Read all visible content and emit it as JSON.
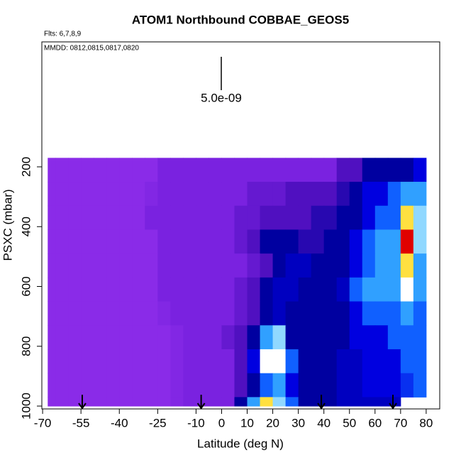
{
  "chart_data": {
    "type": "heatmap",
    "title": "ATOM1 Northbound COBBAE_GEOS5",
    "subtitle": "Flts: 6,7,8,9",
    "annotation": "MMDD: 0812,0815,0817,0820",
    "scale_label": "5.0e-09",
    "x_label": "Latitude (deg N)",
    "y_label": "PSXC (mbar)",
    "xlim": [
      -70.3,
      85.3
    ],
    "ylim": [
      1009.5,
      -217.8
    ],
    "xticks": [
      -70,
      -55,
      -40,
      -25,
      -10,
      0,
      10,
      20,
      30,
      40,
      50,
      60,
      70,
      80
    ],
    "yticks": [
      200,
      400,
      600,
      800,
      1000
    ],
    "x_edges": [
      -68,
      -65,
      -60,
      -55,
      -50,
      -45,
      -40,
      -35,
      -30,
      -25,
      -20,
      -15,
      -10,
      -5,
      0,
      5,
      10,
      15,
      20,
      25,
      30,
      35,
      40,
      45,
      50,
      55,
      60,
      65,
      70,
      75,
      80
    ],
    "y_edges": [
      170,
      250,
      330,
      410,
      490,
      570,
      650,
      730,
      810,
      890,
      970,
      1000
    ],
    "zlim": [
      0,
      10
    ],
    "colormap": [
      "#8a2be8",
      "#7a22e0",
      "#5010c0",
      "#0000a0",
      "#0000e0",
      "#1060ff",
      "#30a0ff",
      "#90d8ff",
      "#ffffff",
      "#ffe040",
      "#e00000"
    ],
    "z": [
      [
        0,
        0,
        0,
        0,
        0,
        0,
        0,
        0,
        0,
        1,
        1,
        1,
        1,
        1,
        1,
        1,
        1,
        1,
        1,
        1,
        1,
        1,
        1,
        2,
        2,
        3,
        3,
        3,
        3,
        4
      ],
      [
        0,
        0,
        0,
        0,
        0,
        0,
        0,
        0,
        0.5,
        1,
        1,
        1,
        1,
        1,
        1,
        1,
        1.5,
        1.5,
        1.5,
        2,
        2,
        2,
        2,
        2.5,
        3,
        4,
        4,
        5,
        6,
        6
      ],
      [
        0,
        0,
        0,
        0,
        0,
        0,
        0,
        0,
        1,
        1,
        1,
        1,
        1,
        1,
        1,
        1.5,
        1.5,
        2,
        2,
        2,
        2,
        2.5,
        2.5,
        3,
        3,
        4,
        5,
        5,
        9,
        7
      ],
      [
        0,
        0,
        0,
        0,
        0,
        0,
        0,
        0,
        0,
        1,
        1,
        1,
        1,
        1,
        1,
        1.5,
        2,
        3,
        3,
        3,
        2.5,
        2.5,
        3,
        3,
        4,
        5,
        6,
        6,
        10,
        7
      ],
      [
        0,
        0,
        0,
        0,
        0,
        0,
        0,
        0,
        0,
        1,
        1,
        1,
        1,
        1,
        1,
        1,
        1.5,
        2,
        3,
        3.5,
        3.5,
        3,
        3,
        3,
        4,
        5,
        6,
        6,
        9,
        6
      ],
      [
        0,
        0,
        0,
        0,
        0,
        0,
        0,
        0,
        0,
        1,
        1,
        1,
        1,
        1,
        1,
        1.5,
        2,
        3,
        3.5,
        3.5,
        3,
        3,
        3,
        3.5,
        5,
        6,
        6,
        6,
        8,
        6
      ],
      [
        0,
        0,
        0,
        0,
        0,
        0,
        0,
        0,
        0,
        0.5,
        1,
        1,
        1,
        1,
        1,
        1.5,
        2,
        3,
        3.5,
        3,
        3,
        3,
        3,
        3,
        4,
        5,
        5,
        5,
        6,
        5
      ],
      [
        0,
        0,
        0,
        0,
        0,
        0,
        0,
        0,
        0,
        0,
        0.5,
        1,
        1,
        1,
        1.5,
        2,
        3,
        6,
        7,
        3,
        3,
        3,
        3,
        3,
        4,
        4,
        4,
        5,
        5,
        5
      ],
      [
        0,
        0,
        0,
        0,
        0,
        0,
        0,
        0,
        0,
        0,
        0.5,
        1,
        1,
        1,
        1,
        2,
        4,
        8,
        8,
        5,
        3,
        3,
        3,
        3.5,
        3.5,
        4,
        4,
        4,
        5,
        5
      ],
      [
        0,
        0,
        0,
        0,
        0,
        0,
        0,
        0,
        0,
        0,
        0.5,
        1,
        1,
        1,
        1,
        2,
        3,
        5,
        6,
        4,
        3,
        3,
        3,
        3.5,
        3.5,
        4,
        4,
        4,
        4.5,
        5
      ],
      [
        0,
        0,
        0,
        0,
        0,
        0,
        0,
        0,
        0,
        0,
        0.5,
        1,
        1,
        1,
        1,
        3,
        6,
        9,
        7,
        5,
        3,
        3,
        3,
        3.5,
        3.5,
        3.5,
        3.5,
        3.5,
        null,
        null
      ]
    ],
    "arrows": [
      -54.5,
      -8,
      39,
      67
    ]
  }
}
